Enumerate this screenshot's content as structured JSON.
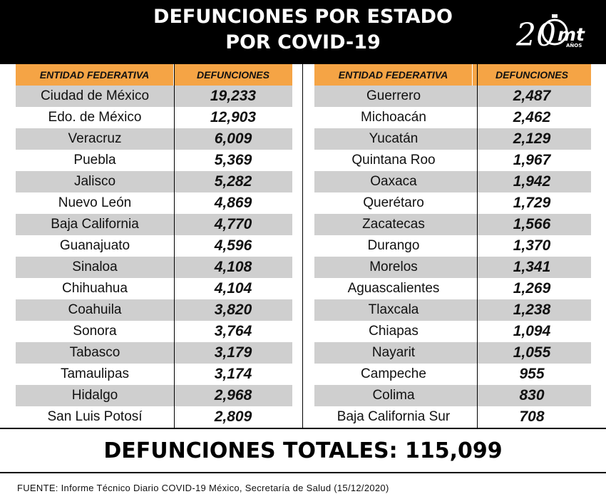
{
  "title_line1": "DEFUNCIONES POR ESTADO",
  "title_line2": "POR COVID-19",
  "logo": {
    "number": "20",
    "brand": "mt",
    "sub": "AÑOS"
  },
  "colors": {
    "header_bg": "#000000",
    "header_row": "#f5a445",
    "stripe": "#cfcfcf"
  },
  "table_headers": {
    "entity": "ENTIDAD FEDERATIVA",
    "deaths": "DEFUNCIONES"
  },
  "chart_data": {
    "type": "table",
    "columns": [
      "ENTIDAD FEDERATIVA",
      "DEFUNCIONES"
    ],
    "rows": [
      [
        "Ciudad de México",
        "19,233"
      ],
      [
        "Edo. de México",
        "12,903"
      ],
      [
        "Veracruz",
        "6,009"
      ],
      [
        "Puebla",
        "5,369"
      ],
      [
        "Jalisco",
        "5,282"
      ],
      [
        "Nuevo León",
        "4,869"
      ],
      [
        "Baja California",
        "4,770"
      ],
      [
        "Guanajuato",
        "4,596"
      ],
      [
        "Sinaloa",
        "4,108"
      ],
      [
        "Chihuahua",
        "4,104"
      ],
      [
        "Coahuila",
        "3,820"
      ],
      [
        "Sonora",
        "3,764"
      ],
      [
        "Tabasco",
        "3,179"
      ],
      [
        "Tamaulipas",
        "3,174"
      ],
      [
        "Hidalgo",
        "2,968"
      ],
      [
        "San Luis Potosí",
        "2,809"
      ],
      [
        "Guerrero",
        "2,487"
      ],
      [
        "Michoacán",
        "2,462"
      ],
      [
        "Yucatán",
        "2,129"
      ],
      [
        "Quintana Roo",
        "1,967"
      ],
      [
        "Oaxaca",
        "1,942"
      ],
      [
        "Querétaro",
        "1,729"
      ],
      [
        "Zacatecas",
        "1,566"
      ],
      [
        "Durango",
        "1,370"
      ],
      [
        "Morelos",
        "1,341"
      ],
      [
        "Aguascalientes",
        "1,269"
      ],
      [
        "Tlaxcala",
        "1,238"
      ],
      [
        "Chiapas",
        "1,094"
      ],
      [
        "Nayarit",
        "1,055"
      ],
      [
        "Campeche",
        "955"
      ],
      [
        "Colima",
        "830"
      ],
      [
        "Baja California Sur",
        "708"
      ]
    ]
  },
  "total": "DEFUNCIONES TOTALES: 115,099",
  "source": "FUENTE: Informe Técnico Diario COVID-19 México, Secretaría de Salud (15/12/2020)"
}
